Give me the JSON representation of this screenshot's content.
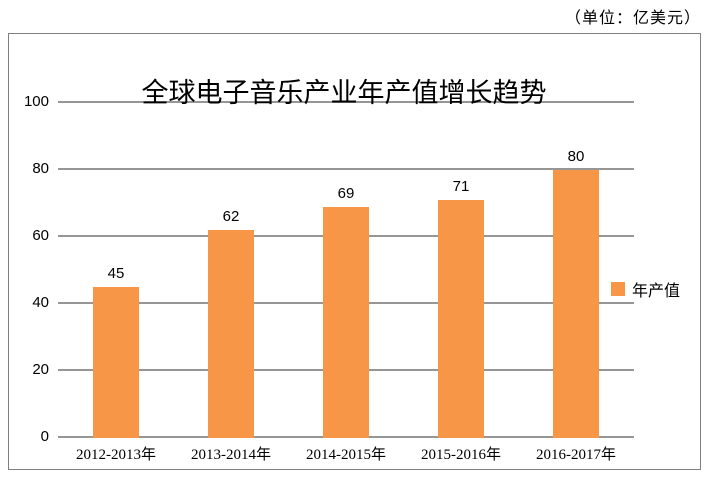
{
  "unit_note": "（单位：亿美元）",
  "chart_data": {
    "type": "bar",
    "title": "全球电子音乐产业年产值增长趋势",
    "categories": [
      "2012-2013年",
      "2013-2014年",
      "2014-2015年",
      "2015-2016年",
      "2016-2017年"
    ],
    "series": [
      {
        "name": "年产值",
        "values": [
          45,
          62,
          69,
          71,
          80
        ]
      }
    ],
    "xlabel": "",
    "ylabel": "",
    "ylim": [
      0,
      100
    ],
    "yticks": [
      0,
      20,
      40,
      60,
      80,
      100
    ],
    "grid": true,
    "legend_position": "right",
    "colors": {
      "bar": "#F79646",
      "gridline": "#969696",
      "chart_border": "#808080",
      "text": "#000000",
      "background": "#ffffff"
    }
  }
}
